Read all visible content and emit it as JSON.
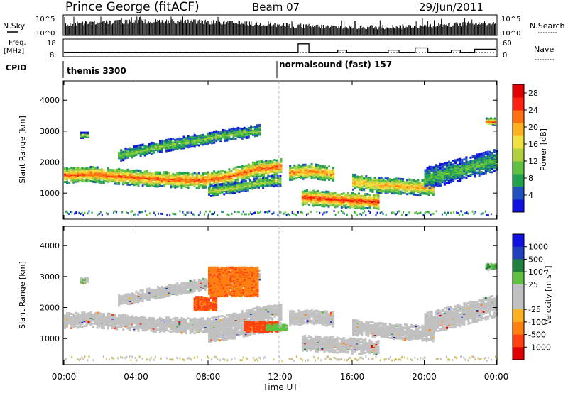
{
  "header": {
    "station": "Prince George (fitACF)",
    "beam": "Beam 07",
    "date": "29/Jun/2011"
  },
  "top_panels": {
    "nsky_label": "N.Sky",
    "nsearch_label": "N.Search",
    "nsky_ticks": [
      "10^5",
      "10^0"
    ],
    "nsearch_ticks": [
      "10^5",
      "10^0"
    ],
    "freq_label_1": "Freq.",
    "freq_label_2": "[MHz]",
    "freq_ticks": [
      "18",
      "8"
    ],
    "nave_label": "Nave",
    "nave_ticks": [
      "60",
      "0"
    ],
    "cpid_label": "CPID",
    "cpid_segments": [
      {
        "name": "themis 3300",
        "start_h": 0,
        "end_h": 12
      },
      {
        "name": "normalsound (fast) 157",
        "start_h": 12,
        "end_h": 24
      }
    ],
    "nave_steps": [
      {
        "h": 0,
        "v": 12
      },
      {
        "h": 13,
        "v": 12
      },
      {
        "h": 13.0,
        "v": 45
      },
      {
        "h": 13.6,
        "v": 45
      },
      {
        "h": 13.6,
        "v": 12
      },
      {
        "h": 15.2,
        "v": 12
      },
      {
        "h": 15.2,
        "v": 22
      },
      {
        "h": 15.7,
        "v": 22
      },
      {
        "h": 15.7,
        "v": 12
      },
      {
        "h": 18.0,
        "v": 12
      },
      {
        "h": 18.0,
        "v": 22
      },
      {
        "h": 18.6,
        "v": 22
      },
      {
        "h": 18.6,
        "v": 12
      },
      {
        "h": 19.5,
        "v": 12
      },
      {
        "h": 19.5,
        "v": 30
      },
      {
        "h": 20.2,
        "v": 30
      },
      {
        "h": 20.2,
        "v": 12
      },
      {
        "h": 21.5,
        "v": 12
      },
      {
        "h": 21.5,
        "v": 22
      },
      {
        "h": 22.0,
        "v": 22
      },
      {
        "h": 22.0,
        "v": 12
      },
      {
        "h": 22.8,
        "v": 12
      },
      {
        "h": 22.8,
        "v": 25
      },
      {
        "h": 24,
        "v": 25
      }
    ]
  },
  "chart_data": [
    {
      "type": "heatmap",
      "quantity": "Power",
      "xlabel": "",
      "ylabel": "Slant Range [km]",
      "xlim": [
        0,
        24
      ],
      "ylim": [
        180,
        4600
      ],
      "yticks": [
        "1000",
        "2000",
        "3000",
        "4000"
      ],
      "colorbar_label": "Power [dB]",
      "colorbar_ticks": [
        "4",
        "8",
        "12",
        "16",
        "20",
        "24",
        "28"
      ],
      "colorbar_range": [
        0,
        30
      ],
      "colors": [
        "#1010e0",
        "#2050c0",
        "#20a050",
        "#60c040",
        "#b0d040",
        "#f0e040",
        "#ffb020",
        "#ff7010",
        "#ff2010",
        "#e00000"
      ],
      "echo_bands": [
        {
          "start_h": 0.0,
          "end_h": 12.0,
          "center_km": [
            1620,
            1650,
            1580,
            1520,
            1470,
            1450,
            1550,
            1800,
            1900
          ],
          "half_width_km": 180,
          "peak_db": 24
        },
        {
          "start_h": 3.0,
          "end_h": 10.8,
          "center_km": [
            2250,
            2500,
            2700,
            2900,
            3050
          ],
          "half_width_km": 130,
          "peak_db": 12
        },
        {
          "start_h": 8.0,
          "end_h": 12.0,
          "center_km": [
            1100,
            1200,
            1350,
            1450
          ],
          "half_width_km": 120,
          "peak_db": 14
        },
        {
          "start_h": 12.5,
          "end_h": 15.0,
          "center_km": [
            1700,
            1750,
            1650
          ],
          "half_width_km": 170,
          "peak_db": 22
        },
        {
          "start_h": 13.2,
          "end_h": 17.5,
          "center_km": [
            900,
            850,
            800,
            750
          ],
          "half_width_km": 180,
          "peak_db": 26
        },
        {
          "start_h": 16.0,
          "end_h": 20.5,
          "center_km": [
            1400,
            1300,
            1250,
            1200
          ],
          "half_width_km": 180,
          "peak_db": 20
        },
        {
          "start_h": 20.0,
          "end_h": 24.0,
          "center_km": [
            1500,
            1700,
            1900,
            2100
          ],
          "half_width_km": 250,
          "peak_db": 10
        },
        {
          "start_h": 23.4,
          "end_h": 24.0,
          "center_km": [
            3350
          ],
          "half_width_km": 70,
          "peak_db": 26
        },
        {
          "start_h": 0.9,
          "end_h": 1.3,
          "center_km": [
            2900
          ],
          "half_width_km": 60,
          "peak_db": 14
        }
      ]
    },
    {
      "type": "heatmap",
      "quantity": "Velocity",
      "xlabel": "Time UT",
      "ylabel": "Slant Range [km]",
      "xlim": [
        0,
        24
      ],
      "ylim": [
        180,
        4600
      ],
      "xticks": [
        "00:00",
        "04:00",
        "08:00",
        "12:00",
        "16:00",
        "20:00",
        "00:00"
      ],
      "yticks": [
        "1000",
        "2000",
        "3000",
        "4000"
      ],
      "colorbar_label": "Velocity [m s^-1]",
      "colorbar_ticks": [
        "1000",
        "500",
        "100",
        "25",
        "-25",
        "-100",
        "-500",
        "-1000"
      ],
      "colorbar_range": [
        -1000,
        1000
      ],
      "colors": [
        "#1010e0",
        "#2040c0",
        "#208040",
        "#60c040",
        "#c0c0c0",
        "#c0c0c0",
        "#ffb020",
        "#ff8010",
        "#ff4010",
        "#e00000"
      ],
      "ground_scatter_color": "#c0c0c0",
      "flow_patches": [
        {
          "start_h": 7.2,
          "end_h": 8.4,
          "range_km": [
            1950,
            2400
          ],
          "vel": -300
        },
        {
          "start_h": 8.0,
          "end_h": 10.7,
          "range_km": [
            2400,
            3350
          ],
          "vel": -200
        },
        {
          "start_h": 10.0,
          "end_h": 11.8,
          "range_km": [
            1250,
            1600
          ],
          "vel": -350
        },
        {
          "start_h": 11.2,
          "end_h": 12.3,
          "range_km": [
            1300,
            1500
          ],
          "vel": 150
        },
        {
          "start_h": 23.4,
          "end_h": 24.0,
          "range_km": [
            3300,
            3450
          ],
          "vel": 200
        },
        {
          "start_h": 0.9,
          "end_h": 1.2,
          "range_km": [
            2850,
            2950
          ],
          "vel": 120
        }
      ]
    }
  ]
}
